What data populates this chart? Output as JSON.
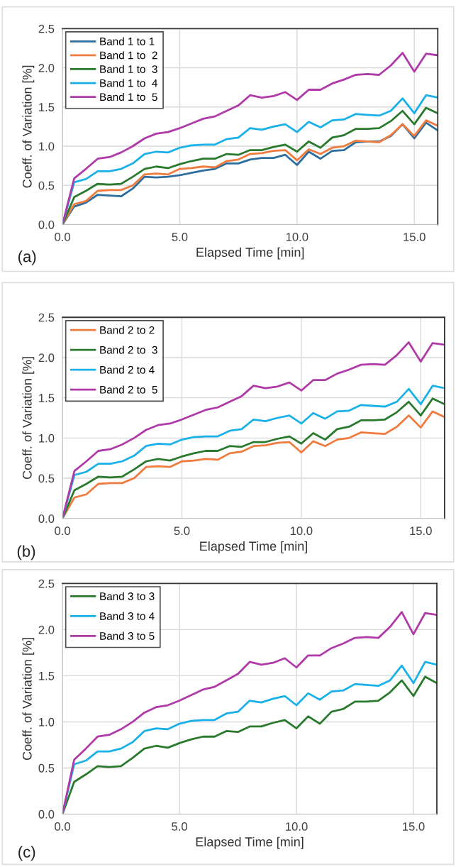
{
  "chart_data": [
    {
      "type": "line",
      "xlabel": "Elapsed Time [min]",
      "ylabel": "Coeff. of Variation [%]",
      "annotations": [
        "(a)"
      ],
      "x": [
        0,
        0.5,
        1,
        1.5,
        2,
        2.5,
        3,
        3.5,
        4,
        4.5,
        5,
        5.5,
        6,
        6.5,
        7,
        7.5,
        8,
        8.5,
        9,
        9.5,
        10,
        10.5,
        11,
        11.5,
        12,
        12.5,
        13,
        13.5,
        14,
        14.5,
        15,
        15.5,
        16
      ],
      "xlim": [
        0,
        16
      ],
      "ylim": [
        0,
        2.5
      ],
      "xticks": [
        {
          "value": 0,
          "label": "0.0"
        },
        {
          "value": 5,
          "label": "5.0"
        },
        {
          "value": 10,
          "label": "10.0"
        },
        {
          "value": 15,
          "label": "15.0"
        }
      ],
      "yticks": [
        {
          "value": 0,
          "label": "0.0"
        },
        {
          "value": 0.5,
          "label": "0.5"
        },
        {
          "value": 1,
          "label": "1.0"
        },
        {
          "value": 1.5,
          "label": "1.5"
        },
        {
          "value": 2,
          "label": "2.0"
        },
        {
          "value": 2.5,
          "label": "2.5"
        }
      ],
      "grid": true,
      "legend": "top left",
      "series": [
        {
          "name": "Band 1 to 1",
          "color": "#2e6e9e",
          "values": [
            0,
            0.23,
            0.28,
            0.38,
            0.37,
            0.36,
            0.46,
            0.61,
            0.6,
            0.61,
            0.63,
            0.66,
            0.69,
            0.71,
            0.78,
            0.78,
            0.83,
            0.85,
            0.85,
            0.89,
            0.76,
            0.93,
            0.84,
            0.94,
            0.95,
            1.05,
            1.06,
            1.06,
            1.13,
            1.28,
            1.1,
            1.3,
            1.2
          ]
        },
        {
          "name": "Band 1 to  2",
          "color": "#f07b3f",
          "values": [
            0,
            0.26,
            0.3,
            0.43,
            0.44,
            0.44,
            0.5,
            0.64,
            0.65,
            0.64,
            0.71,
            0.72,
            0.74,
            0.73,
            0.81,
            0.83,
            0.9,
            0.91,
            0.94,
            0.95,
            0.82,
            0.96,
            0.9,
            0.98,
            1.0,
            1.07,
            1.06,
            1.05,
            1.14,
            1.28,
            1.13,
            1.33,
            1.26
          ]
        },
        {
          "name": "Band 1 to  3",
          "color": "#2a7a2e",
          "values": [
            0,
            0.35,
            0.43,
            0.52,
            0.51,
            0.52,
            0.61,
            0.71,
            0.74,
            0.72,
            0.77,
            0.81,
            0.84,
            0.84,
            0.9,
            0.89,
            0.95,
            0.95,
            0.99,
            1.02,
            0.93,
            1.06,
            0.98,
            1.11,
            1.14,
            1.22,
            1.22,
            1.23,
            1.32,
            1.45,
            1.28,
            1.49,
            1.42
          ]
        },
        {
          "name": "Band 1 to  4",
          "color": "#1ab0e8",
          "values": [
            0,
            0.54,
            0.58,
            0.68,
            0.68,
            0.71,
            0.78,
            0.9,
            0.93,
            0.92,
            0.98,
            1.01,
            1.02,
            1.02,
            1.09,
            1.11,
            1.23,
            1.21,
            1.25,
            1.28,
            1.18,
            1.31,
            1.24,
            1.33,
            1.34,
            1.41,
            1.4,
            1.39,
            1.45,
            1.61,
            1.42,
            1.65,
            1.62
          ]
        },
        {
          "name": "Band 1 to  5",
          "color": "#b03aa8",
          "values": [
            0,
            0.59,
            0.71,
            0.84,
            0.86,
            0.92,
            1.0,
            1.1,
            1.16,
            1.18,
            1.23,
            1.29,
            1.35,
            1.38,
            1.45,
            1.52,
            1.65,
            1.62,
            1.64,
            1.69,
            1.59,
            1.72,
            1.72,
            1.8,
            1.85,
            1.91,
            1.92,
            1.91,
            2.03,
            2.19,
            1.95,
            2.18,
            2.16
          ]
        }
      ]
    },
    {
      "type": "line",
      "xlabel": "Elapsed Time [min]",
      "ylabel": "Coeff. of Variation [%]",
      "annotations": [
        "(b)"
      ],
      "x": [
        0,
        0.5,
        1,
        1.5,
        2,
        2.5,
        3,
        3.5,
        4,
        4.5,
        5,
        5.5,
        6,
        6.5,
        7,
        7.5,
        8,
        8.5,
        9,
        9.5,
        10,
        10.5,
        11,
        11.5,
        12,
        12.5,
        13,
        13.5,
        14,
        14.5,
        15,
        15.5,
        16
      ],
      "xlim": [
        0,
        16
      ],
      "ylim": [
        0,
        2.5
      ],
      "xticks": [
        {
          "value": 0,
          "label": "0.0"
        },
        {
          "value": 5,
          "label": "5.0"
        },
        {
          "value": 10,
          "label": "10.0"
        },
        {
          "value": 15,
          "label": "15.0"
        }
      ],
      "yticks": [
        {
          "value": 0,
          "label": "0.0"
        },
        {
          "value": 0.5,
          "label": "0.5"
        },
        {
          "value": 1,
          "label": "1.0"
        },
        {
          "value": 1.5,
          "label": "1.5"
        },
        {
          "value": 2,
          "label": "2.0"
        },
        {
          "value": 2.5,
          "label": "2.5"
        }
      ],
      "grid": true,
      "legend": "top left",
      "series": [
        {
          "name": "Band 2 to 2",
          "color": "#f07b3f",
          "values": [
            0,
            0.26,
            0.3,
            0.43,
            0.44,
            0.44,
            0.5,
            0.64,
            0.65,
            0.64,
            0.71,
            0.72,
            0.74,
            0.73,
            0.81,
            0.83,
            0.9,
            0.91,
            0.94,
            0.95,
            0.82,
            0.96,
            0.9,
            0.98,
            1.0,
            1.07,
            1.06,
            1.05,
            1.14,
            1.28,
            1.13,
            1.33,
            1.26
          ]
        },
        {
          "name": "Band 2 to  3",
          "color": "#2a7a2e",
          "values": [
            0,
            0.35,
            0.43,
            0.52,
            0.51,
            0.52,
            0.61,
            0.71,
            0.74,
            0.72,
            0.77,
            0.81,
            0.84,
            0.84,
            0.9,
            0.89,
            0.95,
            0.95,
            0.99,
            1.02,
            0.93,
            1.06,
            0.98,
            1.11,
            1.14,
            1.22,
            1.22,
            1.23,
            1.32,
            1.45,
            1.28,
            1.49,
            1.42
          ]
        },
        {
          "name": "Band 2 to 4",
          "color": "#1ab0e8",
          "values": [
            0,
            0.54,
            0.58,
            0.68,
            0.68,
            0.71,
            0.78,
            0.9,
            0.93,
            0.92,
            0.98,
            1.01,
            1.02,
            1.02,
            1.09,
            1.11,
            1.23,
            1.21,
            1.25,
            1.28,
            1.18,
            1.31,
            1.24,
            1.33,
            1.34,
            1.41,
            1.4,
            1.39,
            1.45,
            1.61,
            1.42,
            1.65,
            1.62
          ]
        },
        {
          "name": "Band 2 to  5",
          "color": "#b03aa8",
          "values": [
            0,
            0.59,
            0.71,
            0.84,
            0.86,
            0.92,
            1.0,
            1.1,
            1.16,
            1.18,
            1.23,
            1.29,
            1.35,
            1.38,
            1.45,
            1.52,
            1.65,
            1.62,
            1.64,
            1.69,
            1.59,
            1.72,
            1.72,
            1.8,
            1.85,
            1.91,
            1.92,
            1.91,
            2.03,
            2.19,
            1.95,
            2.18,
            2.16
          ]
        }
      ]
    },
    {
      "type": "line",
      "xlabel": "Elapsed Time [min]",
      "ylabel": "Coeff. of Variation [%]",
      "annotations": [
        "(c)"
      ],
      "x": [
        0,
        0.5,
        1,
        1.5,
        2,
        2.5,
        3,
        3.5,
        4,
        4.5,
        5,
        5.5,
        6,
        6.5,
        7,
        7.5,
        8,
        8.5,
        9,
        9.5,
        10,
        10.5,
        11,
        11.5,
        12,
        12.5,
        13,
        13.5,
        14,
        14.5,
        15,
        15.5,
        16
      ],
      "xlim": [
        0,
        16
      ],
      "ylim": [
        0,
        2.5
      ],
      "xticks": [
        {
          "value": 0,
          "label": "0.0"
        },
        {
          "value": 5,
          "label": "5.0"
        },
        {
          "value": 10,
          "label": "10.0"
        },
        {
          "value": 15,
          "label": "15.0"
        }
      ],
      "yticks": [
        {
          "value": 0,
          "label": "0.0"
        },
        {
          "value": 0.5,
          "label": "0.5"
        },
        {
          "value": 1,
          "label": "1.0"
        },
        {
          "value": 1.5,
          "label": "1.5"
        },
        {
          "value": 2,
          "label": "2.0"
        },
        {
          "value": 2.5,
          "label": "2.5"
        }
      ],
      "grid": true,
      "legend": "top left",
      "series": [
        {
          "name": "Band 3 to 3",
          "color": "#2a7a2e",
          "values": [
            0,
            0.35,
            0.43,
            0.52,
            0.51,
            0.52,
            0.61,
            0.71,
            0.74,
            0.72,
            0.77,
            0.81,
            0.84,
            0.84,
            0.9,
            0.89,
            0.95,
            0.95,
            0.99,
            1.02,
            0.93,
            1.06,
            0.98,
            1.11,
            1.14,
            1.22,
            1.22,
            1.23,
            1.32,
            1.45,
            1.28,
            1.49,
            1.42
          ]
        },
        {
          "name": "Band 3 to 4",
          "color": "#1ab0e8",
          "values": [
            0,
            0.54,
            0.58,
            0.68,
            0.68,
            0.71,
            0.78,
            0.9,
            0.93,
            0.92,
            0.98,
            1.01,
            1.02,
            1.02,
            1.09,
            1.11,
            1.23,
            1.21,
            1.25,
            1.28,
            1.18,
            1.31,
            1.24,
            1.33,
            1.34,
            1.41,
            1.4,
            1.39,
            1.45,
            1.61,
            1.42,
            1.65,
            1.62
          ]
        },
        {
          "name": "Band 3 to 5",
          "color": "#b03aa8",
          "values": [
            0,
            0.59,
            0.71,
            0.84,
            0.86,
            0.92,
            1.0,
            1.1,
            1.16,
            1.18,
            1.23,
            1.29,
            1.35,
            1.38,
            1.45,
            1.52,
            1.65,
            1.62,
            1.64,
            1.69,
            1.59,
            1.72,
            1.72,
            1.8,
            1.85,
            1.91,
            1.92,
            1.91,
            2.03,
            2.19,
            1.95,
            2.18,
            2.16
          ]
        }
      ]
    }
  ]
}
